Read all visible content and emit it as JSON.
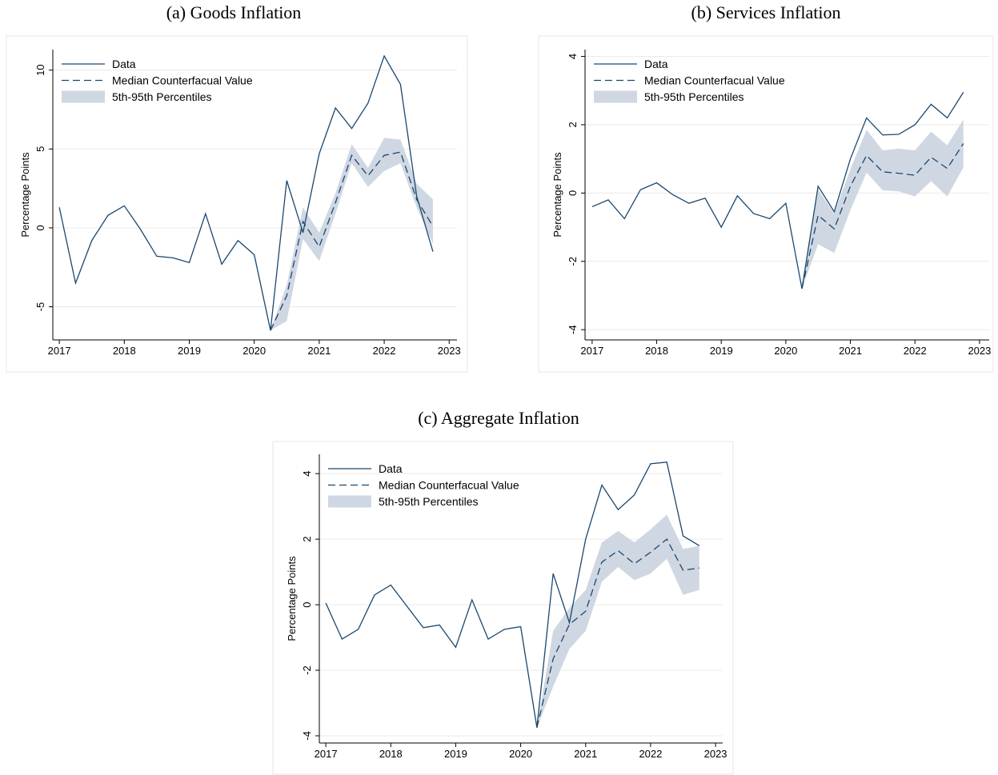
{
  "chart_data": [
    {
      "type": "line",
      "title": "(a) Goods Inflation",
      "ylabel": "Percentage Points",
      "x": [
        2017,
        2017.25,
        2017.5,
        2017.75,
        2018,
        2018.25,
        2018.5,
        2018.75,
        2019,
        2019.25,
        2019.5,
        2019.75,
        2020,
        2020.25,
        2020.5,
        2020.75,
        2021,
        2021.25,
        2021.5,
        2021.75,
        2022,
        2022.25,
        2022.5,
        2022.75
      ],
      "xlim": [
        2016.9,
        2023.12
      ],
      "xticks": [
        2017,
        2018,
        2019,
        2020,
        2021,
        2022,
        2023
      ],
      "ylim": [
        -7.1,
        11.3
      ],
      "yticks": [
        -5,
        0,
        5,
        10
      ],
      "grid": true,
      "series": [
        {
          "name": "Data",
          "color": "#1a476f",
          "values": [
            1.3,
            -3.5,
            -0.8,
            0.8,
            1.4,
            -0.1,
            -1.8,
            -1.9,
            -2.2,
            0.9,
            -2.3,
            -0.8,
            -1.7,
            -6.5,
            3.0,
            -0.3,
            4.7,
            7.6,
            6.3,
            7.9,
            10.9,
            9.1,
            2.0,
            -1.5
          ]
        },
        {
          "name": "Median Counterfacual Value",
          "color": "#1a476f",
          "dash": true,
          "values": [
            null,
            null,
            null,
            null,
            null,
            null,
            null,
            null,
            null,
            null,
            null,
            null,
            null,
            -6.5,
            -4.3,
            0.4,
            -1.2,
            1.6,
            4.6,
            3.3,
            4.6,
            4.8,
            1.8,
            0.1
          ]
        },
        {
          "name": "5th-95th Percentiles",
          "color": "#cfd7e2",
          "lower": [
            null,
            null,
            null,
            null,
            null,
            null,
            null,
            null,
            null,
            null,
            null,
            null,
            null,
            -6.5,
            -5.9,
            -0.7,
            -2.1,
            0.9,
            4.1,
            2.6,
            3.6,
            4.1,
            1.3,
            -1.0
          ],
          "upper": [
            null,
            null,
            null,
            null,
            null,
            null,
            null,
            null,
            null,
            null,
            null,
            null,
            null,
            -6.5,
            -3.6,
            1.3,
            -0.3,
            2.2,
            5.3,
            3.8,
            5.7,
            5.6,
            2.8,
            1.8
          ]
        }
      ]
    },
    {
      "type": "line",
      "title": "(b) Services Inflation",
      "ylabel": "Percentage Points",
      "x": [
        2017,
        2017.25,
        2017.5,
        2017.75,
        2018,
        2018.25,
        2018.5,
        2018.75,
        2019,
        2019.25,
        2019.5,
        2019.75,
        2020,
        2020.25,
        2020.5,
        2020.75,
        2021,
        2021.25,
        2021.5,
        2021.75,
        2022,
        2022.25,
        2022.5,
        2022.75
      ],
      "xlim": [
        2016.89,
        2023.15
      ],
      "xticks": [
        2017,
        2018,
        2019,
        2020,
        2021,
        2022,
        2023
      ],
      "ylim": [
        -4.3,
        4.2
      ],
      "yticks": [
        -4,
        -2,
        0,
        2,
        4
      ],
      "grid": true,
      "series": [
        {
          "name": "Data",
          "color": "#1a476f",
          "values": [
            -0.4,
            -0.2,
            -0.75,
            0.1,
            0.3,
            -0.05,
            -0.3,
            -0.15,
            -1.0,
            -0.08,
            -0.6,
            -0.75,
            -0.3,
            -2.8,
            0.2,
            -0.55,
            1.0,
            2.2,
            1.7,
            1.72,
            2.0,
            2.6,
            2.2,
            2.95
          ]
        },
        {
          "name": "Median Counterfacual Value",
          "color": "#1a476f",
          "dash": true,
          "values": [
            null,
            null,
            null,
            null,
            null,
            null,
            null,
            null,
            null,
            null,
            null,
            null,
            null,
            -2.8,
            -0.65,
            -1.05,
            0.2,
            1.1,
            0.62,
            0.58,
            0.52,
            1.05,
            0.72,
            1.45
          ]
        },
        {
          "name": "5th-95th Percentiles",
          "color": "#cfd7e2",
          "lower": [
            null,
            null,
            null,
            null,
            null,
            null,
            null,
            null,
            null,
            null,
            null,
            null,
            null,
            -2.8,
            -1.5,
            -1.75,
            -0.5,
            0.6,
            0.08,
            0.05,
            -0.1,
            0.35,
            -0.1,
            0.75
          ],
          "upper": [
            null,
            null,
            null,
            null,
            null,
            null,
            null,
            null,
            null,
            null,
            null,
            null,
            null,
            -2.8,
            0.1,
            -0.6,
            0.7,
            1.85,
            1.25,
            1.3,
            1.25,
            1.8,
            1.4,
            2.15
          ]
        }
      ]
    },
    {
      "type": "line",
      "title": "(c) Aggregate Inflation",
      "ylabel": "Percentage Points",
      "x": [
        2017,
        2017.25,
        2017.5,
        2017.75,
        2018,
        2018.25,
        2018.5,
        2018.75,
        2019,
        2019.25,
        2019.5,
        2019.75,
        2020,
        2020.25,
        2020.5,
        2020.75,
        2021,
        2021.25,
        2021.5,
        2021.75,
        2022,
        2022.25,
        2022.5,
        2022.75
      ],
      "xlim": [
        2016.9,
        2023.11
      ],
      "xticks": [
        2017,
        2018,
        2019,
        2020,
        2021,
        2022,
        2023
      ],
      "ylim": [
        -4.22,
        4.59
      ],
      "yticks": [
        -4,
        -2,
        0,
        2,
        4
      ],
      "grid": true,
      "series": [
        {
          "name": "Data",
          "color": "#1a476f",
          "values": [
            0.05,
            -1.05,
            -0.75,
            0.3,
            0.6,
            -0.05,
            -0.7,
            -0.62,
            -1.3,
            0.15,
            -1.05,
            -0.75,
            -0.67,
            -3.75,
            0.95,
            -0.55,
            2.0,
            3.65,
            2.9,
            3.35,
            4.3,
            4.35,
            2.1,
            1.8
          ]
        },
        {
          "name": "Median Counterfacual Value",
          "color": "#1a476f",
          "dash": true,
          "values": [
            null,
            null,
            null,
            null,
            null,
            null,
            null,
            null,
            null,
            null,
            null,
            null,
            null,
            -3.75,
            -1.65,
            -0.6,
            -0.2,
            1.3,
            1.65,
            1.25,
            1.6,
            2.0,
            1.05,
            1.12
          ]
        },
        {
          "name": "5th-95th Percentiles",
          "color": "#cfd7e2",
          "lower": [
            null,
            null,
            null,
            null,
            null,
            null,
            null,
            null,
            null,
            null,
            null,
            null,
            null,
            -3.75,
            -2.5,
            -1.35,
            -0.8,
            0.7,
            1.15,
            0.75,
            0.95,
            1.4,
            0.3,
            0.45
          ],
          "upper": [
            null,
            null,
            null,
            null,
            null,
            null,
            null,
            null,
            null,
            null,
            null,
            null,
            null,
            -3.75,
            -0.8,
            -0.1,
            0.45,
            1.9,
            2.25,
            1.9,
            2.3,
            2.75,
            1.7,
            1.8
          ]
        }
      ]
    }
  ]
}
